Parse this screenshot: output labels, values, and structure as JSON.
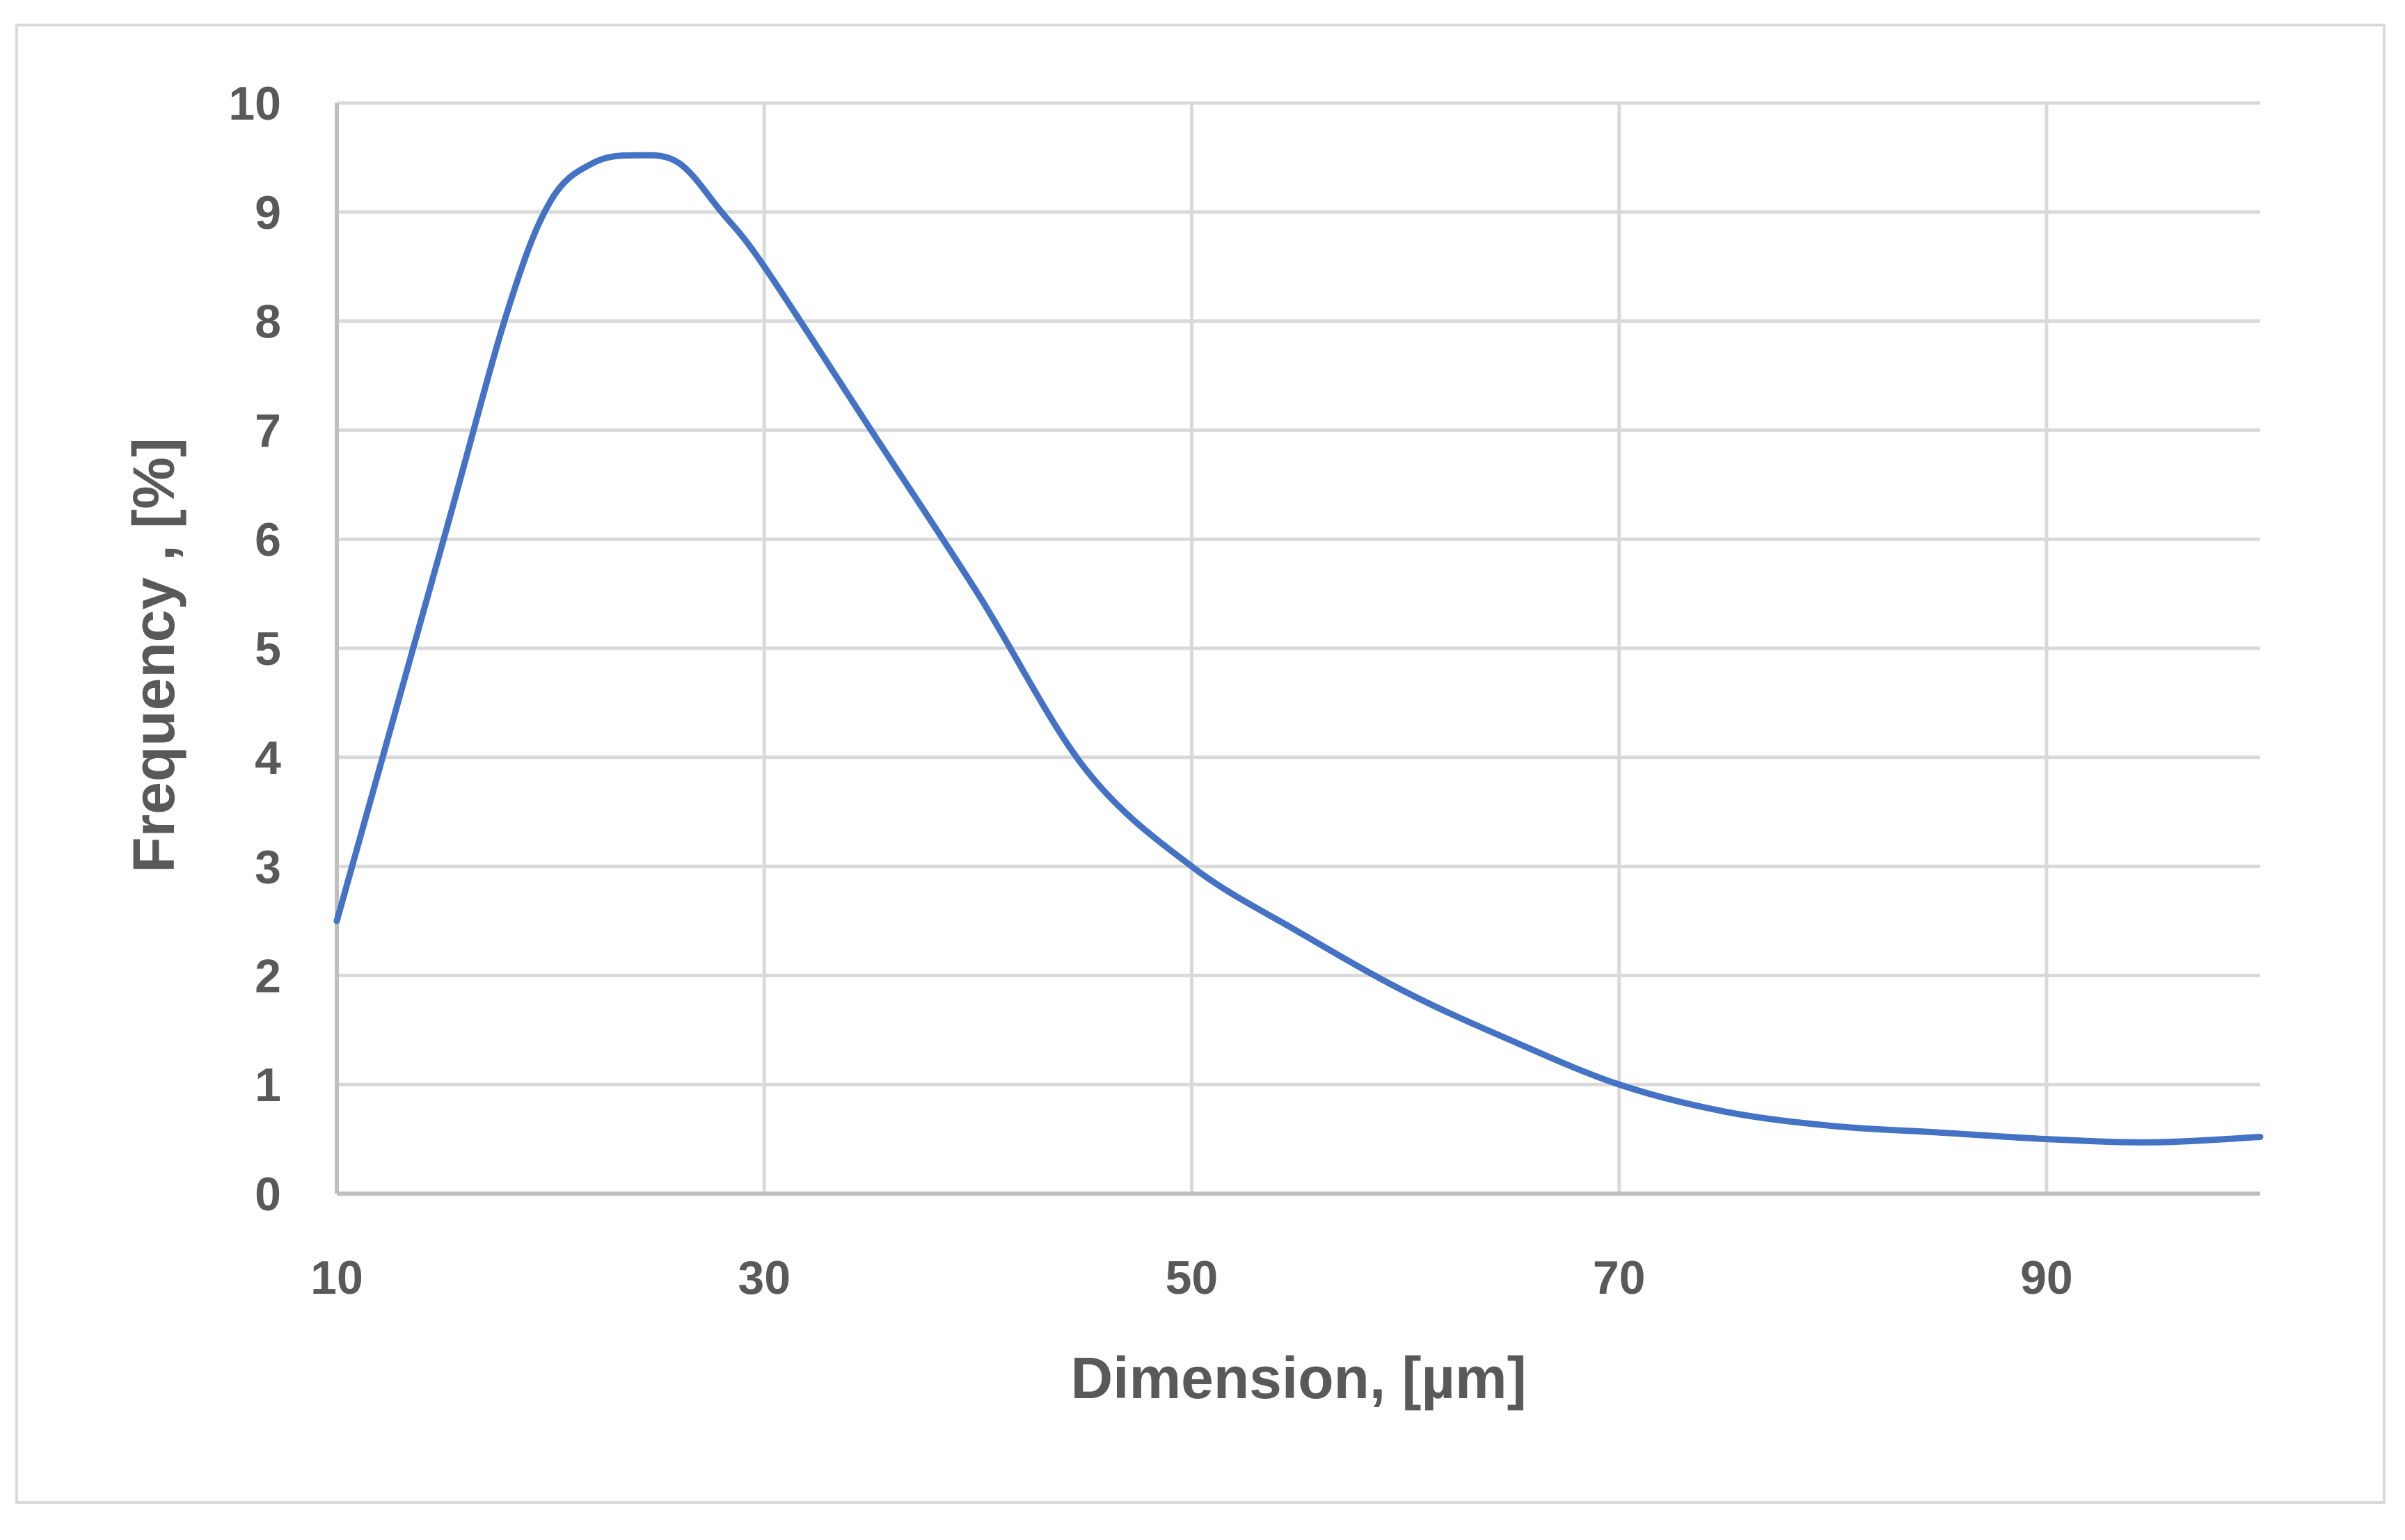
{
  "chart_data": {
    "type": "line",
    "title": "",
    "xlabel": "Dimension, [µm]",
    "ylabel": "Frequency , [%]",
    "xlim": [
      10,
      100
    ],
    "ylim": [
      0,
      10
    ],
    "x_ticks": [
      10,
      30,
      50,
      70,
      90
    ],
    "y_ticks": [
      0,
      1,
      2,
      3,
      4,
      5,
      6,
      7,
      8,
      9,
      10
    ],
    "grid": true,
    "legend": "none",
    "series": [
      {
        "color": "#4472c4",
        "x": [
          10,
          15,
          18,
          20,
          22,
          24,
          26,
          28,
          30,
          35,
          40,
          45,
          50,
          55,
          60,
          65,
          70,
          75,
          80,
          85,
          90,
          95,
          100
        ],
        "y": [
          2.5,
          6.0,
          8.1,
          9.1,
          9.45,
          9.52,
          9.45,
          9.0,
          8.5,
          7.0,
          5.5,
          3.9,
          3.0,
          2.4,
          1.85,
          1.4,
          1.0,
          0.75,
          0.62,
          0.56,
          0.5,
          0.47,
          0.52
        ]
      }
    ]
  }
}
